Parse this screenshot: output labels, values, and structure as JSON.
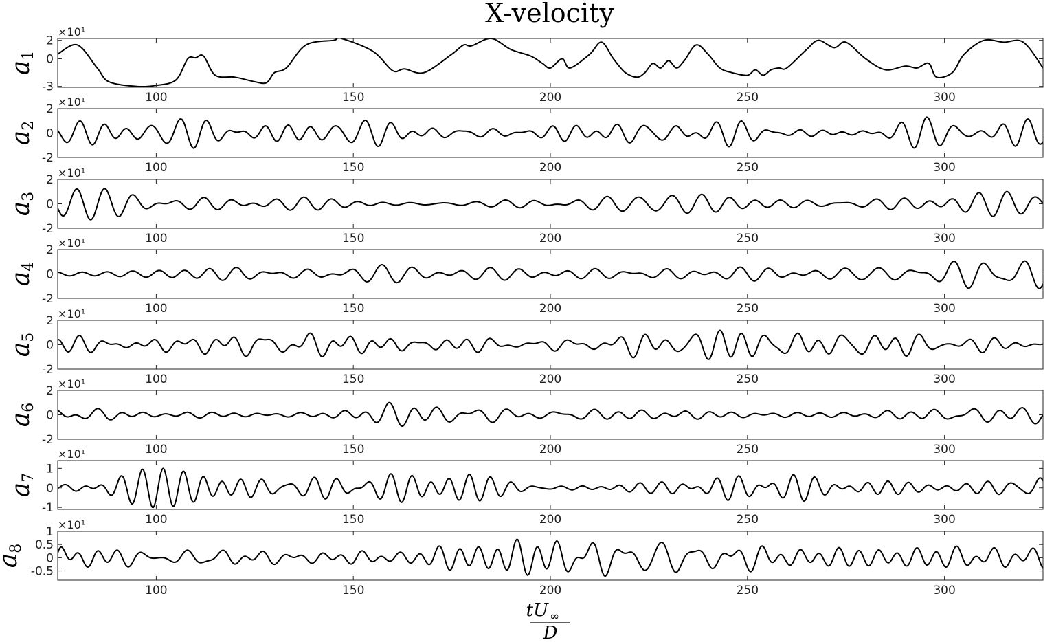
{
  "chart_data": {
    "type": "line",
    "title": "X-velocity",
    "xlabel": {
      "numerator": "tU",
      "subscript": "∞",
      "denominator": "D"
    },
    "xlim": [
      75,
      325
    ],
    "xticks": [
      100,
      150,
      200,
      250,
      300
    ],
    "panels": [
      {
        "name": "a",
        "index": "1",
        "exponent": "×10¹",
        "ylim": [
          -3.1,
          2.2
        ],
        "yticks": [
          -3,
          0,
          2
        ],
        "yticklabels": [
          "-3",
          "0",
          "2"
        ],
        "x": [
          75,
          80,
          85,
          88,
          95,
          100,
          105,
          108,
          110,
          112,
          115,
          120,
          125,
          128,
          130,
          133,
          138,
          145,
          147,
          155,
          160,
          163,
          168,
          175,
          178,
          180,
          185,
          190,
          195,
          198,
          200,
          203,
          205,
          210,
          213,
          216,
          219,
          222,
          224,
          226,
          228,
          230,
          232,
          234,
          237,
          240,
          243,
          246,
          250,
          252,
          254,
          256,
          258,
          260,
          265,
          268,
          272,
          275,
          280,
          285,
          290,
          293,
          296,
          298,
          302,
          305,
          310,
          315,
          320,
          325
        ],
        "y": [
          0.5,
          1.5,
          -1.0,
          -2.5,
          -3.0,
          -2.9,
          -2.3,
          0.0,
          0.1,
          0.3,
          -1.8,
          -2.0,
          -2.5,
          -2.6,
          -1.5,
          -1.0,
          1.5,
          2.0,
          2.2,
          0.8,
          -1.3,
          -1.1,
          -1.5,
          0.5,
          1.5,
          1.4,
          2.2,
          1.0,
          0.3,
          -0.5,
          -1.0,
          0.0,
          -1.0,
          0.5,
          1.8,
          0.0,
          -1.5,
          -2.0,
          -1.5,
          -0.5,
          -1.0,
          -0.2,
          -1.0,
          -0.2,
          1.5,
          0.5,
          -1.0,
          -1.5,
          -1.8,
          -1.2,
          -1.8,
          -1.2,
          -1.0,
          -1.0,
          1.0,
          2.0,
          1.2,
          1.8,
          0.0,
          -1.2,
          -0.8,
          -1.0,
          -0.5,
          -2.0,
          -1.5,
          0.5,
          2.0,
          1.8,
          1.8,
          -1.0
        ]
      },
      {
        "name": "a",
        "index": "2",
        "amp": 1.3,
        "ylim": [
          -2,
          2
        ],
        "yticks": [
          -2,
          0,
          2
        ],
        "yticklabels": [
          "-2",
          "0",
          "2"
        ],
        "exponent": "×10¹"
      },
      {
        "name": "a",
        "index": "3",
        "amp": 1.3,
        "ylim": [
          -2,
          2
        ],
        "yticks": [
          -2,
          0,
          2
        ],
        "yticklabels": [
          "-2",
          "0",
          "2"
        ],
        "exponent": "×10¹"
      },
      {
        "name": "a",
        "index": "4",
        "amp": 1.2,
        "ylim": [
          -2,
          2
        ],
        "yticks": [
          -2,
          0,
          2
        ],
        "yticklabels": [
          "-2",
          "0",
          "2"
        ],
        "exponent": "×10¹"
      },
      {
        "name": "a",
        "index": "5",
        "amp": 1.2,
        "ylim": [
          -2,
          2
        ],
        "yticks": [
          -2,
          0,
          2
        ],
        "yticklabels": [
          "-2",
          "0",
          "2"
        ],
        "exponent": "×10¹"
      },
      {
        "name": "a",
        "index": "6",
        "amp": 1.0,
        "ylim": [
          -2,
          2
        ],
        "yticks": [
          -2,
          0,
          2
        ],
        "yticklabels": [
          "-2",
          "0",
          "2"
        ],
        "exponent": "×10¹"
      },
      {
        "name": "a",
        "index": "7",
        "amp": 1.0,
        "ylim": [
          -1.1,
          1.4
        ],
        "yticks": [
          -1,
          0,
          1
        ],
        "yticklabels": [
          "-1",
          "0",
          "1"
        ],
        "exponent": "×10¹"
      },
      {
        "name": "a",
        "index": "8",
        "amp": 0.7,
        "ylim": [
          -0.85,
          1.0
        ],
        "yticks": [
          -0.5,
          0,
          0.5,
          1
        ],
        "yticklabels": [
          "-0.5",
          "0",
          "0.5",
          "1"
        ],
        "exponent": "×10¹"
      }
    ]
  }
}
